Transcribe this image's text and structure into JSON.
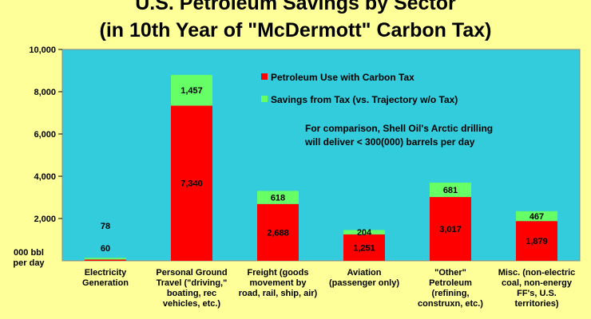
{
  "chart_data": {
    "type": "bar",
    "stacked": true,
    "title_lines": [
      "U.S. Petroleum Savings by Sector",
      "(in 10th Year of \"McDermott\" Carbon Tax)"
    ],
    "ylabel_lines": [
      "000 bbl",
      "per day"
    ],
    "ylim": [
      0,
      10000
    ],
    "yticks": [
      "10,000",
      "8,000",
      "6,000",
      "4,000",
      "2,000"
    ],
    "ytick_values": [
      10000,
      8000,
      6000,
      4000,
      2000
    ],
    "grid": false,
    "legend_position": "top-right",
    "categories": [
      [
        "Electricity",
        "Generation"
      ],
      [
        "Personal Ground",
        "Travel (\"driving,\"",
        "boating, rec",
        "vehicles, etc.)"
      ],
      [
        "Freight (goods",
        "movement by",
        "road, rail, ship, air)"
      ],
      [
        "Aviation",
        "(passenger only)"
      ],
      [
        "\"Other\"",
        "Petroleum",
        "(refining,",
        "construxn, etc.)"
      ],
      [
        "Misc. (non-electric",
        "coal, non-energy",
        "FF's, U.S.",
        "territories)"
      ]
    ],
    "series": [
      {
        "name": "Petroleum Use with Carbon Tax",
        "color": "#ff0000",
        "values": [
          60,
          7340,
          2688,
          1251,
          3017,
          1879
        ],
        "labels": [
          "60",
          "7,340",
          "2,688",
          "1,251",
          "3,017",
          "1,879"
        ]
      },
      {
        "name": "Savings from Tax (vs. Trajectory w/o Tax)",
        "color": "#66ff66",
        "values": [
          78,
          1457,
          618,
          204,
          681,
          467
        ],
        "labels": [
          "78",
          "1,457",
          "618",
          "204",
          "681",
          "467"
        ]
      }
    ],
    "plot_background": "#33ccdd",
    "annotation_lines": [
      "For comparison, Shell Oil's Arctic drilling",
      "will deliver < 300(000) barrels per day"
    ]
  }
}
